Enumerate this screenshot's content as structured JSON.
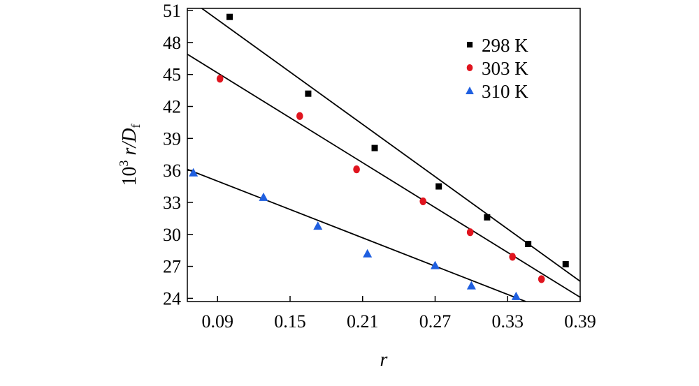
{
  "chart_data": {
    "type": "scatter",
    "title": "",
    "xlabel": "r",
    "ylabel_prefix": "10",
    "ylabel_sup": "3",
    "ylabel_r": " r/",
    "ylabel_D": "D",
    "ylabel_sub": "f",
    "xlim": [
      0.065,
      0.39
    ],
    "ylim": [
      23.7,
      51.2
    ],
    "xticks": [
      0.09,
      0.15,
      0.21,
      0.27,
      0.33,
      0.39
    ],
    "xtick_labels": [
      "0.09",
      "0.15",
      "0.21",
      "0.27",
      "0.33",
      "0.39"
    ],
    "yticks": [
      24,
      27,
      30,
      33,
      36,
      39,
      42,
      45,
      48,
      51
    ],
    "ytick_labels": [
      "24",
      "27",
      "30",
      "33",
      "36",
      "39",
      "42",
      "45",
      "48",
      "51"
    ],
    "grid": false,
    "legend_position": "top-right",
    "series": [
      {
        "name": "298 K",
        "marker": "square",
        "color": "#000000",
        "x": [
          0.1,
          0.165,
          0.22,
          0.273,
          0.313,
          0.347,
          0.378
        ],
        "y": [
          50.4,
          43.2,
          38.1,
          34.5,
          31.6,
          29.1,
          27.2
        ],
        "fit": {
          "x": [
            0.077,
            0.39
          ],
          "y": [
            51.2,
            25.6
          ]
        }
      },
      {
        "name": "303 K",
        "marker": "circle",
        "color": "#e0141e",
        "x": [
          0.092,
          0.158,
          0.205,
          0.26,
          0.299,
          0.334,
          0.358
        ],
        "y": [
          44.6,
          41.1,
          36.1,
          33.1,
          30.2,
          27.9,
          25.8
        ],
        "fit": {
          "x": [
            0.065,
            0.39
          ],
          "y": [
            46.9,
            24.1
          ]
        }
      },
      {
        "name": "310 K",
        "marker": "triangle",
        "color": "#1f5fe0",
        "x": [
          0.07,
          0.128,
          0.173,
          0.214,
          0.27,
          0.3,
          0.337
        ],
        "y": [
          35.8,
          33.5,
          30.8,
          28.2,
          27.1,
          25.2,
          24.2
        ],
        "fit": {
          "x": [
            0.065,
            0.345
          ],
          "y": [
            36.1,
            23.7
          ]
        }
      }
    ]
  }
}
